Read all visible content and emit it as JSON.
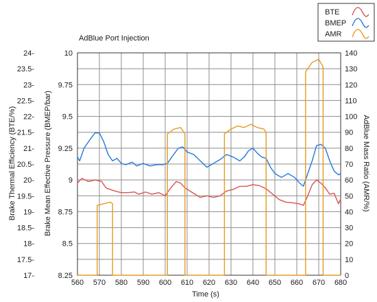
{
  "chart_data": {
    "type": "line",
    "title": "AdBlue Port Injection",
    "xlabel": "Time (s)",
    "xlim": [
      560,
      680
    ],
    "x_ticks": [
      "560",
      "570",
      "580",
      "590",
      "600",
      "610",
      "620",
      "630",
      "640",
      "650",
      "660",
      "670",
      "680"
    ],
    "grid": true,
    "legend_position": "top-right",
    "axes": {
      "bte": {
        "label": "Brake Thermal Efficiency (BTE/%)",
        "ylim": [
          17,
          24
        ],
        "ticks": [
          "17-",
          "17.5-",
          "18-",
          "18.5-",
          "19-",
          "19.5-",
          "20-",
          "20.5-",
          "21-",
          "21.5-",
          "22-",
          "22.5-",
          "23-",
          "23.5-",
          "24-"
        ]
      },
      "bmep": {
        "label": "Brake Mean Effective Pressure (BMEP/bar)",
        "ylim": [
          8.25,
          10
        ],
        "ticks": [
          "8.25",
          "8.5",
          "8.75",
          "9",
          "9.25",
          "9.5",
          "9.75",
          "10"
        ]
      },
      "amr": {
        "label": "AdBlue Mass Ratio (AMR/%)",
        "ylim": [
          0,
          140
        ],
        "ticks": [
          "0",
          "10",
          "20",
          "30",
          "40",
          "50",
          "60",
          "70",
          "80",
          "90",
          "100",
          "110",
          "120",
          "130",
          "140"
        ]
      }
    },
    "series": [
      {
        "name": "BTE",
        "axis": "bte",
        "color": "#d9534f",
        "points": [
          [
            560,
            19.9
          ],
          [
            562,
            20.05
          ],
          [
            565,
            19.95
          ],
          [
            568,
            20.0
          ],
          [
            571,
            19.95
          ],
          [
            573,
            19.75
          ],
          [
            575,
            19.7
          ],
          [
            577,
            19.65
          ],
          [
            580,
            19.6
          ],
          [
            583,
            19.6
          ],
          [
            586,
            19.62
          ],
          [
            588,
            19.55
          ],
          [
            591,
            19.62
          ],
          [
            594,
            19.55
          ],
          [
            597,
            19.6
          ],
          [
            600,
            19.5
          ],
          [
            602,
            19.7
          ],
          [
            605,
            19.95
          ],
          [
            607,
            19.9
          ],
          [
            609,
            19.75
          ],
          [
            612,
            19.62
          ],
          [
            616,
            19.45
          ],
          [
            619,
            19.5
          ],
          [
            622,
            19.45
          ],
          [
            625,
            19.5
          ],
          [
            628,
            19.65
          ],
          [
            631,
            19.7
          ],
          [
            634,
            19.8
          ],
          [
            637,
            19.8
          ],
          [
            640,
            19.85
          ],
          [
            643,
            19.82
          ],
          [
            646,
            19.72
          ],
          [
            649,
            19.55
          ],
          [
            652,
            19.38
          ],
          [
            655,
            19.3
          ],
          [
            658,
            19.28
          ],
          [
            661,
            19.25
          ],
          [
            663,
            19.2
          ],
          [
            665,
            19.5
          ],
          [
            667,
            19.85
          ],
          [
            669,
            20.0
          ],
          [
            671,
            19.9
          ],
          [
            673,
            19.75
          ],
          [
            675,
            19.55
          ],
          [
            677,
            19.58
          ],
          [
            679,
            19.25
          ],
          [
            680,
            19.4
          ]
        ]
      },
      {
        "name": "BMEP",
        "axis": "bmep",
        "color": "#2277dd",
        "points": [
          [
            560,
            9.18
          ],
          [
            561,
            9.15
          ],
          [
            563,
            9.25
          ],
          [
            565,
            9.3
          ],
          [
            568,
            9.37
          ],
          [
            570,
            9.37
          ],
          [
            572,
            9.3
          ],
          [
            574,
            9.2
          ],
          [
            576,
            9.15
          ],
          [
            578,
            9.17
          ],
          [
            580,
            9.13
          ],
          [
            582,
            9.12
          ],
          [
            585,
            9.14
          ],
          [
            587,
            9.11
          ],
          [
            590,
            9.13
          ],
          [
            593,
            9.11
          ],
          [
            596,
            9.12
          ],
          [
            599,
            9.12
          ],
          [
            601,
            9.13
          ],
          [
            603,
            9.18
          ],
          [
            606,
            9.25
          ],
          [
            608,
            9.26
          ],
          [
            610,
            9.22
          ],
          [
            613,
            9.2
          ],
          [
            616,
            9.15
          ],
          [
            619,
            9.1
          ],
          [
            622,
            9.13
          ],
          [
            625,
            9.16
          ],
          [
            628,
            9.2
          ],
          [
            631,
            9.18
          ],
          [
            634,
            9.15
          ],
          [
            636,
            9.18
          ],
          [
            638,
            9.23
          ],
          [
            640,
            9.25
          ],
          [
            642,
            9.21
          ],
          [
            644,
            9.18
          ],
          [
            646,
            9.17
          ],
          [
            648,
            9.1
          ],
          [
            650,
            9.05
          ],
          [
            653,
            9.02
          ],
          [
            656,
            9.05
          ],
          [
            659,
            9.02
          ],
          [
            661,
            8.98
          ],
          [
            663,
            8.95
          ],
          [
            665,
            9.05
          ],
          [
            667,
            9.15
          ],
          [
            669,
            9.27
          ],
          [
            671,
            9.28
          ],
          [
            673,
            9.25
          ],
          [
            675,
            9.15
          ],
          [
            677,
            9.07
          ],
          [
            679,
            9.04
          ],
          [
            680,
            9.05
          ]
        ]
      },
      {
        "name": "AMR",
        "axis": "amr",
        "color": "#e69a1e",
        "points": [
          [
            560,
            0
          ],
          [
            569,
            0
          ],
          [
            569,
            44
          ],
          [
            572,
            45
          ],
          [
            575,
            46
          ],
          [
            576,
            45
          ],
          [
            576,
            0
          ],
          [
            601,
            0
          ],
          [
            601,
            89
          ],
          [
            604,
            92
          ],
          [
            607,
            93
          ],
          [
            608,
            91
          ],
          [
            609,
            89
          ],
          [
            609,
            0
          ],
          [
            627,
            0
          ],
          [
            627,
            89
          ],
          [
            630,
            92
          ],
          [
            633,
            94
          ],
          [
            636,
            93
          ],
          [
            639,
            95
          ],
          [
            642,
            93
          ],
          [
            645,
            92
          ],
          [
            646,
            90
          ],
          [
            646,
            0
          ],
          [
            664,
            0
          ],
          [
            664,
            128
          ],
          [
            667,
            134
          ],
          [
            670,
            136
          ],
          [
            672,
            131
          ],
          [
            672,
            0
          ],
          [
            680,
            0
          ]
        ]
      }
    ]
  }
}
